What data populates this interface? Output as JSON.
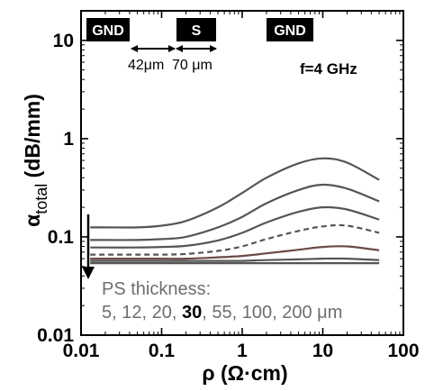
{
  "chart_data": {
    "type": "line",
    "xscale": "log",
    "yscale": "log",
    "xlim": [
      0.01,
      100
    ],
    "ylim": [
      0.01,
      20
    ],
    "xticks": [
      0.01,
      0.1,
      1,
      10,
      100
    ],
    "yticks": [
      0.01,
      0.1,
      1,
      10
    ],
    "xtick_labels": [
      "0.01",
      "0.1",
      "1",
      "10",
      "100"
    ],
    "ytick_labels": [
      "0.01",
      "0.1",
      "1",
      "10"
    ],
    "xlabel": "ρ (Ω·cm)",
    "ylabel_symbol": "α",
    "ylabel_sub": "total",
    "ylabel_unit": "(dB/mm)",
    "grid": false,
    "x": [
      0.013,
      0.02,
      0.05,
      0.1,
      0.2,
      0.5,
      1,
      2,
      5,
      10,
      20,
      50
    ],
    "series": [
      {
        "values": [
          0.125,
          0.125,
          0.125,
          0.13,
          0.145,
          0.2,
          0.28,
          0.4,
          0.56,
          0.63,
          0.57,
          0.38
        ],
        "color": "#555555",
        "dashed": false
      },
      {
        "values": [
          0.093,
          0.093,
          0.093,
          0.095,
          0.1,
          0.125,
          0.16,
          0.22,
          0.3,
          0.34,
          0.31,
          0.23
        ],
        "color": "#555555",
        "dashed": false
      },
      {
        "values": [
          0.078,
          0.078,
          0.078,
          0.079,
          0.081,
          0.092,
          0.11,
          0.14,
          0.18,
          0.2,
          0.19,
          0.15
        ],
        "color": "#555555",
        "dashed": false
      },
      {
        "values": [
          0.066,
          0.066,
          0.066,
          0.066,
          0.067,
          0.072,
          0.08,
          0.095,
          0.115,
          0.128,
          0.13,
          0.11
        ],
        "color": "#555555",
        "dashed": true
      },
      {
        "values": [
          0.06,
          0.06,
          0.06,
          0.06,
          0.06,
          0.062,
          0.064,
          0.068,
          0.074,
          0.079,
          0.08,
          0.073
        ],
        "color": "#6b4a48",
        "dashed": false
      },
      {
        "values": [
          0.057,
          0.057,
          0.057,
          0.057,
          0.057,
          0.057,
          0.057,
          0.058,
          0.059,
          0.06,
          0.06,
          0.058
        ],
        "color": "#555555",
        "dashed": false
      },
      {
        "values": [
          0.054,
          0.054,
          0.054,
          0.054,
          0.054,
          0.054,
          0.054,
          0.054,
          0.054,
          0.054,
          0.054,
          0.054
        ],
        "color": "#555555",
        "dashed": false
      }
    ],
    "annotations": {
      "pads": [
        "GND",
        "S",
        "GND"
      ],
      "gap_labels": [
        "42μm",
        "70 μm"
      ],
      "frequency": "f=4 GHz",
      "legend_title": "PS thickness:",
      "thickness_values": [
        "5",
        "12",
        "20",
        "30",
        "55",
        "100",
        "200 μm"
      ],
      "highlighted_value": "30"
    }
  }
}
